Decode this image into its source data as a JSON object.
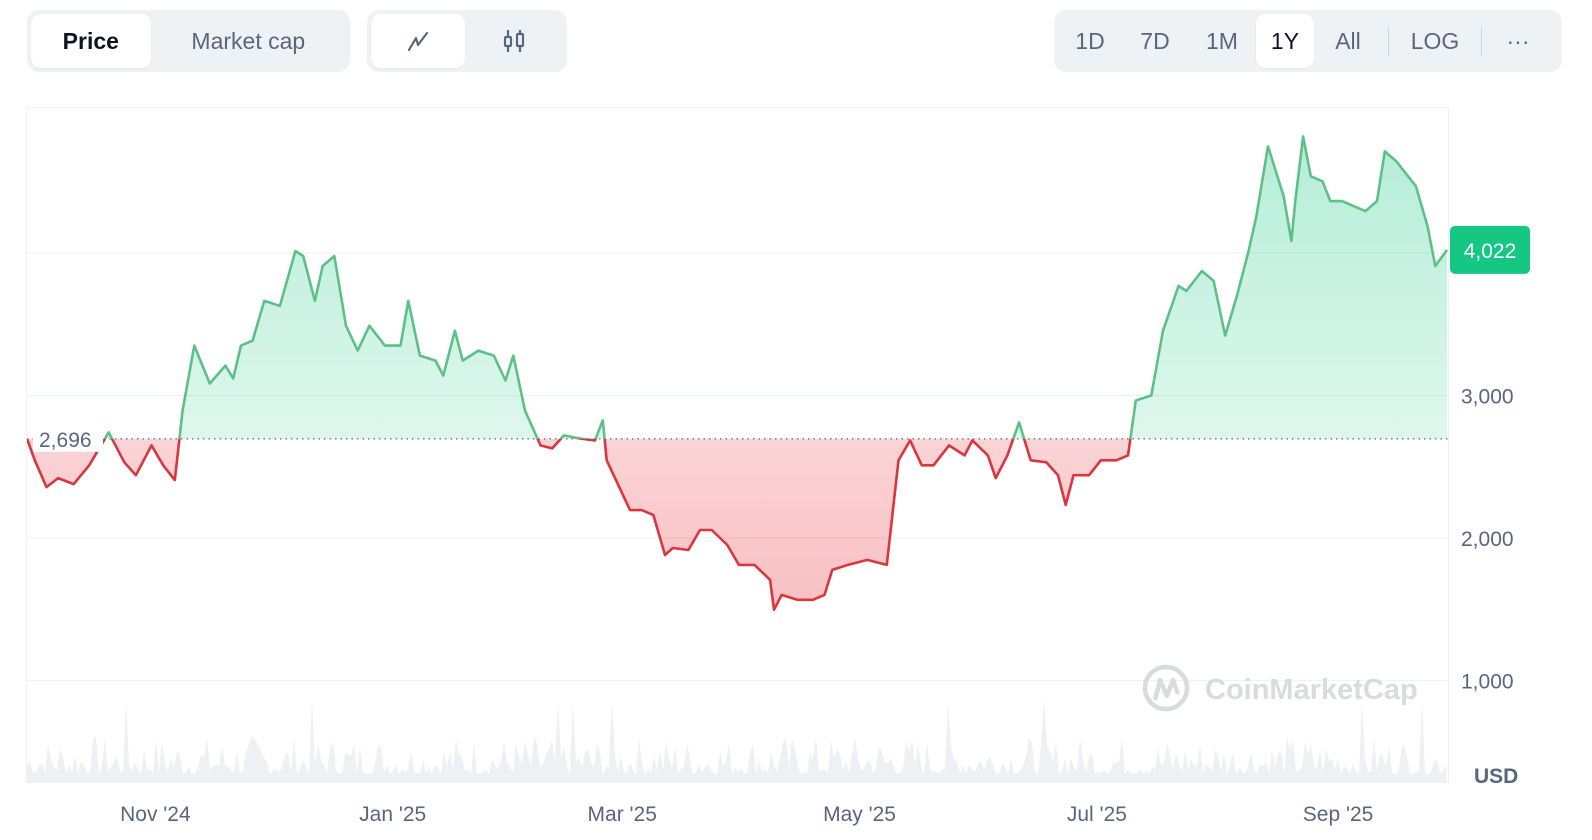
{
  "toolbar": {
    "metric_tabs": [
      {
        "label": "Price",
        "active": true
      },
      {
        "label": "Market cap",
        "active": false
      }
    ],
    "chart_types": [
      {
        "icon": "line-chart-icon",
        "active": true
      },
      {
        "icon": "candlestick-icon",
        "active": false
      }
    ],
    "ranges": [
      {
        "label": "1D"
      },
      {
        "label": "7D"
      },
      {
        "label": "1M"
      },
      {
        "label": "1Y",
        "active": true
      },
      {
        "label": "All"
      }
    ],
    "log_label": "LOG",
    "more_label": "···"
  },
  "watermark": "CoinMarketCap",
  "colors": {
    "up": "#16c784",
    "up_line": "#5dc187",
    "down": "#ea3943",
    "down_line": "#d9363e",
    "grid": "#eff2f5",
    "axis_text": "#58667e"
  },
  "chart_data": {
    "type": "area",
    "currency_label": "USD",
    "baseline": {
      "value": 2696,
      "label": "2,696"
    },
    "current": {
      "value": 4022,
      "label": "4,022"
    },
    "y_ticks": [
      {
        "value": 1000,
        "label": "1,000"
      },
      {
        "value": 2000,
        "label": "2,000"
      },
      {
        "value": 3000,
        "label": "3,000"
      }
    ],
    "x_ticks": [
      {
        "date": "2024-11-01",
        "label": "Nov '24"
      },
      {
        "date": "2025-01-01",
        "label": "Jan '25"
      },
      {
        "date": "2025-03-01",
        "label": "Mar '25"
      },
      {
        "date": "2025-05-01",
        "label": "May '25"
      },
      {
        "date": "2025-07-01",
        "label": "Jul '25"
      },
      {
        "date": "2025-09-01",
        "label": "Sep '25"
      }
    ],
    "x_range": [
      "2024-09-29",
      "2025-09-29"
    ],
    "grid": true,
    "series": [
      {
        "points": [
          [
            "2024-09-29",
            2696
          ],
          [
            "2024-10-01",
            2545
          ],
          [
            "2024-10-04",
            2357
          ],
          [
            "2024-10-07",
            2420
          ],
          [
            "2024-10-11",
            2378
          ],
          [
            "2024-10-15",
            2510
          ],
          [
            "2024-10-20",
            2741
          ],
          [
            "2024-10-24",
            2531
          ],
          [
            "2024-10-27",
            2441
          ],
          [
            "2024-10-31",
            2650
          ],
          [
            "2024-11-03",
            2510
          ],
          [
            "2024-11-06",
            2406
          ],
          [
            "2024-11-08",
            2895
          ],
          [
            "2024-11-11",
            3350
          ],
          [
            "2024-11-15",
            3084
          ],
          [
            "2024-11-19",
            3210
          ],
          [
            "2024-11-21",
            3119
          ],
          [
            "2024-11-23",
            3350
          ],
          [
            "2024-11-26",
            3385
          ],
          [
            "2024-11-29",
            3664
          ],
          [
            "2024-12-03",
            3629
          ],
          [
            "2024-12-07",
            4014
          ],
          [
            "2024-12-09",
            3979
          ],
          [
            "2024-12-12",
            3664
          ],
          [
            "2024-12-14",
            3909
          ],
          [
            "2024-12-17",
            3979
          ],
          [
            "2024-12-20",
            3490
          ],
          [
            "2024-12-23",
            3315
          ],
          [
            "2024-12-26",
            3490
          ],
          [
            "2024-12-30",
            3350
          ],
          [
            "2025-01-03",
            3350
          ],
          [
            "2025-01-05",
            3664
          ],
          [
            "2025-01-08",
            3280
          ],
          [
            "2025-01-12",
            3245
          ],
          [
            "2025-01-14",
            3140
          ],
          [
            "2025-01-17",
            3455
          ],
          [
            "2025-01-19",
            3245
          ],
          [
            "2025-01-23",
            3315
          ],
          [
            "2025-01-27",
            3280
          ],
          [
            "2025-01-30",
            3105
          ],
          [
            "2025-02-01",
            3280
          ],
          [
            "2025-02-04",
            2895
          ],
          [
            "2025-02-08",
            2650
          ],
          [
            "2025-02-11",
            2629
          ],
          [
            "2025-02-14",
            2720
          ],
          [
            "2025-02-18",
            2699
          ],
          [
            "2025-02-22",
            2685
          ],
          [
            "2025-02-24",
            2825
          ],
          [
            "2025-02-25",
            2545
          ],
          [
            "2025-02-28",
            2371
          ],
          [
            "2025-03-03",
            2196
          ],
          [
            "2025-03-06",
            2196
          ],
          [
            "2025-03-09",
            2161
          ],
          [
            "2025-03-12",
            1881
          ],
          [
            "2025-03-14",
            1930
          ],
          [
            "2025-03-18",
            1916
          ],
          [
            "2025-03-21",
            2056
          ],
          [
            "2025-03-24",
            2056
          ],
          [
            "2025-03-28",
            1951
          ],
          [
            "2025-03-31",
            1811
          ],
          [
            "2025-04-04",
            1811
          ],
          [
            "2025-04-08",
            1706
          ],
          [
            "2025-04-09",
            1497
          ],
          [
            "2025-04-11",
            1601
          ],
          [
            "2025-04-15",
            1566
          ],
          [
            "2025-04-19",
            1566
          ],
          [
            "2025-04-22",
            1601
          ],
          [
            "2025-04-24",
            1776
          ],
          [
            "2025-04-28",
            1811
          ],
          [
            "2025-05-03",
            1846
          ],
          [
            "2025-05-08",
            1811
          ],
          [
            "2025-05-11",
            2545
          ],
          [
            "2025-05-14",
            2685
          ],
          [
            "2025-05-17",
            2510
          ],
          [
            "2025-05-20",
            2510
          ],
          [
            "2025-05-24",
            2650
          ],
          [
            "2025-05-28",
            2580
          ],
          [
            "2025-05-30",
            2685
          ],
          [
            "2025-06-03",
            2580
          ],
          [
            "2025-06-05",
            2420
          ],
          [
            "2025-06-08",
            2580
          ],
          [
            "2025-06-11",
            2811
          ],
          [
            "2025-06-14",
            2545
          ],
          [
            "2025-06-18",
            2531
          ],
          [
            "2025-06-21",
            2441
          ],
          [
            "2025-06-23",
            2231
          ],
          [
            "2025-06-25",
            2441
          ],
          [
            "2025-06-29",
            2441
          ],
          [
            "2025-07-02",
            2545
          ],
          [
            "2025-07-06",
            2545
          ],
          [
            "2025-07-09",
            2580
          ],
          [
            "2025-07-11",
            2965
          ],
          [
            "2025-07-15",
            3000
          ],
          [
            "2025-07-18",
            3455
          ],
          [
            "2025-07-22",
            3769
          ],
          [
            "2025-07-24",
            3734
          ],
          [
            "2025-07-28",
            3874
          ],
          [
            "2025-07-31",
            3804
          ],
          [
            "2025-08-03",
            3420
          ],
          [
            "2025-08-06",
            3699
          ],
          [
            "2025-08-09",
            4014
          ],
          [
            "2025-08-11",
            4259
          ],
          [
            "2025-08-14",
            4748
          ],
          [
            "2025-08-18",
            4399
          ],
          [
            "2025-08-20",
            4084
          ],
          [
            "2025-08-21",
            4364
          ],
          [
            "2025-08-23",
            4818
          ],
          [
            "2025-08-25",
            4538
          ],
          [
            "2025-08-28",
            4503
          ],
          [
            "2025-08-30",
            4364
          ],
          [
            "2025-09-02",
            4364
          ],
          [
            "2025-09-05",
            4329
          ],
          [
            "2025-09-08",
            4294
          ],
          [
            "2025-09-11",
            4364
          ],
          [
            "2025-09-13",
            4713
          ],
          [
            "2025-09-16",
            4643
          ],
          [
            "2025-09-19",
            4538
          ],
          [
            "2025-09-21",
            4469
          ],
          [
            "2025-09-24",
            4189
          ],
          [
            "2025-09-26",
            3909
          ],
          [
            "2025-09-29",
            4022
          ]
        ]
      }
    ]
  }
}
